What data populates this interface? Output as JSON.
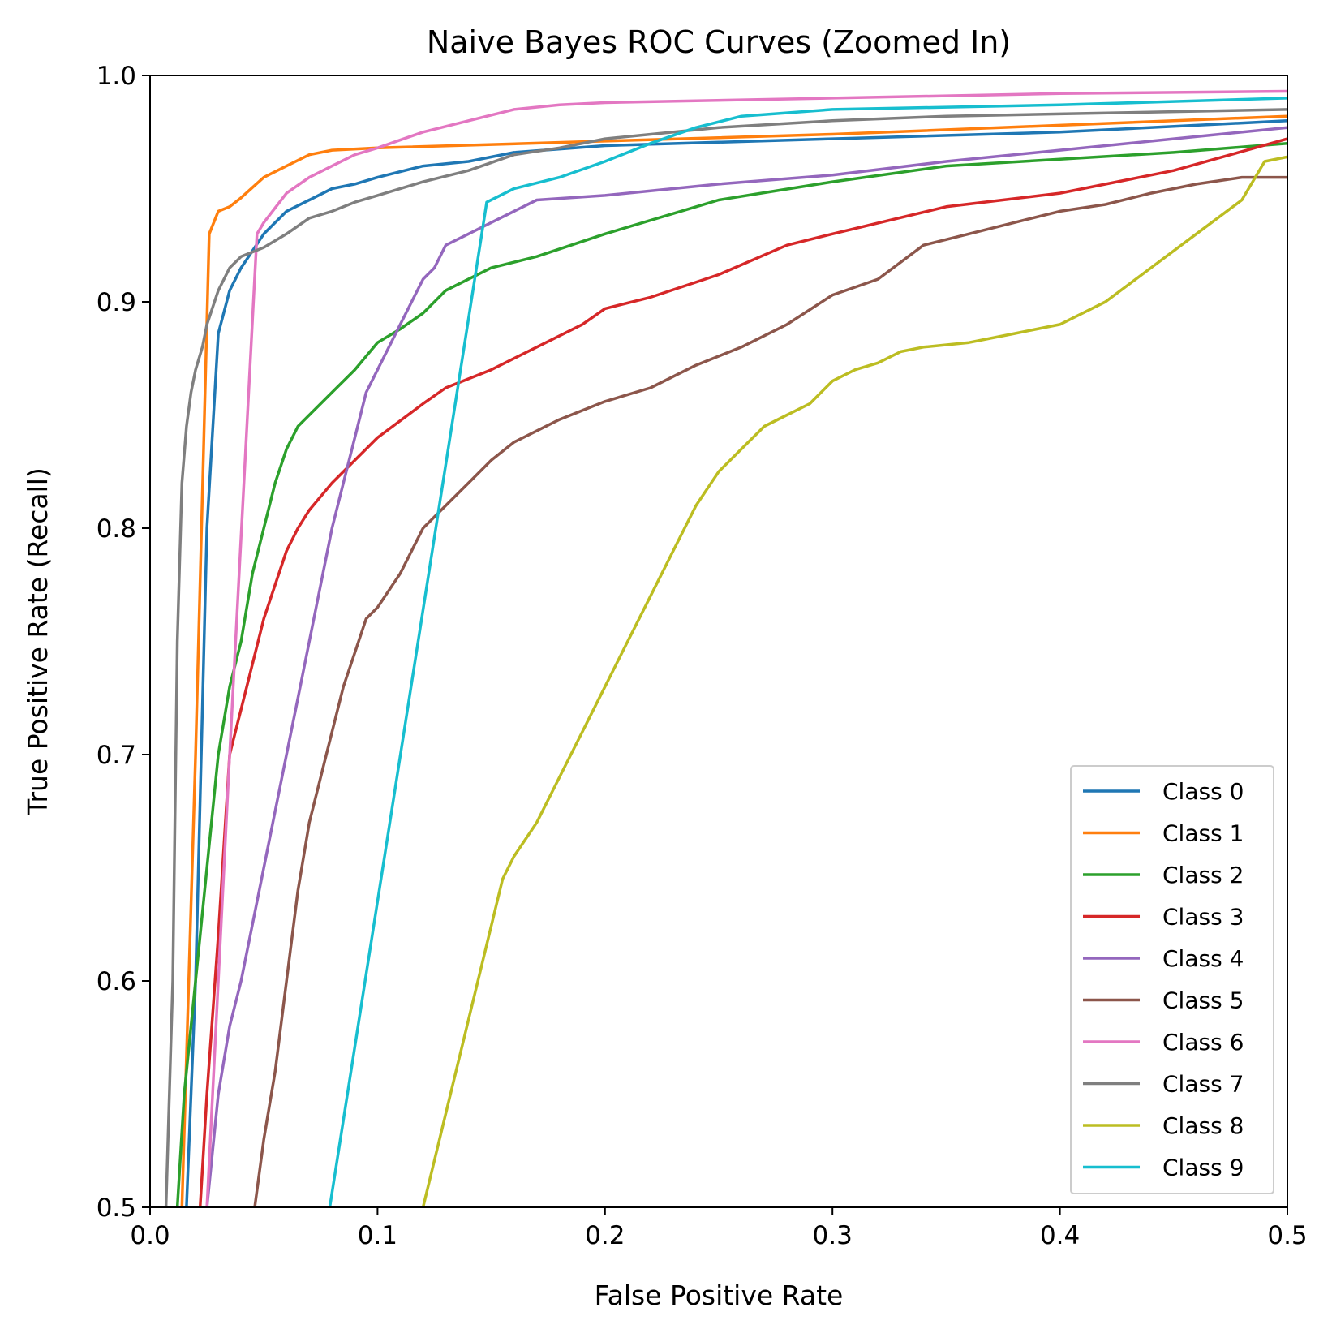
{
  "chart_data": {
    "type": "line",
    "title": "Naive Bayes ROC Curves (Zoomed In)",
    "xlabel": "False Positive Rate",
    "ylabel": "True Positive Rate (Recall)",
    "xlim": [
      0.0,
      0.5
    ],
    "ylim": [
      0.5,
      1.0
    ],
    "xticks": [
      "0.0",
      "0.1",
      "0.2",
      "0.3",
      "0.4",
      "0.5"
    ],
    "yticks": [
      "0.5",
      "0.6",
      "0.7",
      "0.8",
      "0.9",
      "1.0"
    ],
    "grid": false,
    "legend_position": "lower-right",
    "series": [
      {
        "name": "Class 0",
        "color": "#1f77b4",
        "points": [
          [
            0.016,
            0.5
          ],
          [
            0.02,
            0.6
          ],
          [
            0.025,
            0.8
          ],
          [
            0.03,
            0.886
          ],
          [
            0.035,
            0.905
          ],
          [
            0.04,
            0.915
          ],
          [
            0.05,
            0.93
          ],
          [
            0.06,
            0.94
          ],
          [
            0.07,
            0.945
          ],
          [
            0.08,
            0.95
          ],
          [
            0.09,
            0.952
          ],
          [
            0.1,
            0.955
          ],
          [
            0.12,
            0.96
          ],
          [
            0.14,
            0.962
          ],
          [
            0.16,
            0.966
          ],
          [
            0.2,
            0.969
          ],
          [
            0.3,
            0.972
          ],
          [
            0.4,
            0.975
          ],
          [
            0.5,
            0.98
          ]
        ]
      },
      {
        "name": "Class 1",
        "color": "#ff7f0e",
        "points": [
          [
            0.014,
            0.5
          ],
          [
            0.02,
            0.7
          ],
          [
            0.026,
            0.93
          ],
          [
            0.03,
            0.94
          ],
          [
            0.035,
            0.942
          ],
          [
            0.04,
            0.946
          ],
          [
            0.05,
            0.955
          ],
          [
            0.06,
            0.96
          ],
          [
            0.07,
            0.965
          ],
          [
            0.08,
            0.967
          ],
          [
            0.1,
            0.968
          ],
          [
            0.2,
            0.971
          ],
          [
            0.3,
            0.974
          ],
          [
            0.4,
            0.978
          ],
          [
            0.5,
            0.982
          ]
        ]
      },
      {
        "name": "Class 2",
        "color": "#2ca02c",
        "points": [
          [
            0.012,
            0.5
          ],
          [
            0.015,
            0.55
          ],
          [
            0.02,
            0.6
          ],
          [
            0.025,
            0.65
          ],
          [
            0.03,
            0.7
          ],
          [
            0.035,
            0.73
          ],
          [
            0.04,
            0.75
          ],
          [
            0.045,
            0.78
          ],
          [
            0.05,
            0.8
          ],
          [
            0.055,
            0.82
          ],
          [
            0.06,
            0.835
          ],
          [
            0.065,
            0.845
          ],
          [
            0.07,
            0.85
          ],
          [
            0.08,
            0.86
          ],
          [
            0.09,
            0.87
          ],
          [
            0.1,
            0.882
          ],
          [
            0.11,
            0.888
          ],
          [
            0.12,
            0.895
          ],
          [
            0.13,
            0.905
          ],
          [
            0.15,
            0.915
          ],
          [
            0.17,
            0.92
          ],
          [
            0.2,
            0.93
          ],
          [
            0.25,
            0.945
          ],
          [
            0.3,
            0.953
          ],
          [
            0.35,
            0.96
          ],
          [
            0.4,
            0.963
          ],
          [
            0.45,
            0.966
          ],
          [
            0.5,
            0.97
          ]
        ]
      },
      {
        "name": "Class 3",
        "color": "#d62728",
        "points": [
          [
            0.022,
            0.5
          ],
          [
            0.025,
            0.55
          ],
          [
            0.03,
            0.62
          ],
          [
            0.035,
            0.7
          ],
          [
            0.04,
            0.72
          ],
          [
            0.045,
            0.74
          ],
          [
            0.05,
            0.76
          ],
          [
            0.055,
            0.775
          ],
          [
            0.06,
            0.79
          ],
          [
            0.065,
            0.8
          ],
          [
            0.07,
            0.808
          ],
          [
            0.08,
            0.82
          ],
          [
            0.09,
            0.83
          ],
          [
            0.1,
            0.84
          ],
          [
            0.12,
            0.855
          ],
          [
            0.13,
            0.862
          ],
          [
            0.15,
            0.87
          ],
          [
            0.17,
            0.88
          ],
          [
            0.19,
            0.89
          ],
          [
            0.2,
            0.897
          ],
          [
            0.22,
            0.902
          ],
          [
            0.25,
            0.912
          ],
          [
            0.28,
            0.925
          ],
          [
            0.3,
            0.93
          ],
          [
            0.35,
            0.942
          ],
          [
            0.4,
            0.948
          ],
          [
            0.45,
            0.958
          ],
          [
            0.5,
            0.972
          ]
        ]
      },
      {
        "name": "Class 4",
        "color": "#9467bd",
        "points": [
          [
            0.025,
            0.5
          ],
          [
            0.03,
            0.55
          ],
          [
            0.035,
            0.58
          ],
          [
            0.04,
            0.6
          ],
          [
            0.045,
            0.625
          ],
          [
            0.05,
            0.65
          ],
          [
            0.055,
            0.675
          ],
          [
            0.06,
            0.7
          ],
          [
            0.065,
            0.725
          ],
          [
            0.07,
            0.75
          ],
          [
            0.075,
            0.775
          ],
          [
            0.08,
            0.8
          ],
          [
            0.085,
            0.82
          ],
          [
            0.09,
            0.84
          ],
          [
            0.095,
            0.86
          ],
          [
            0.1,
            0.87
          ],
          [
            0.105,
            0.88
          ],
          [
            0.11,
            0.89
          ],
          [
            0.12,
            0.91
          ],
          [
            0.125,
            0.915
          ],
          [
            0.13,
            0.925
          ],
          [
            0.14,
            0.93
          ],
          [
            0.15,
            0.935
          ],
          [
            0.17,
            0.945
          ],
          [
            0.2,
            0.947
          ],
          [
            0.25,
            0.952
          ],
          [
            0.3,
            0.956
          ],
          [
            0.35,
            0.962
          ],
          [
            0.4,
            0.967
          ],
          [
            0.45,
            0.972
          ],
          [
            0.5,
            0.977
          ]
        ]
      },
      {
        "name": "Class 5",
        "color": "#8c564b",
        "points": [
          [
            0.046,
            0.5
          ],
          [
            0.05,
            0.53
          ],
          [
            0.055,
            0.56
          ],
          [
            0.06,
            0.6
          ],
          [
            0.065,
            0.64
          ],
          [
            0.07,
            0.67
          ],
          [
            0.075,
            0.69
          ],
          [
            0.08,
            0.71
          ],
          [
            0.085,
            0.73
          ],
          [
            0.09,
            0.745
          ],
          [
            0.095,
            0.76
          ],
          [
            0.1,
            0.765
          ],
          [
            0.11,
            0.78
          ],
          [
            0.12,
            0.8
          ],
          [
            0.13,
            0.81
          ],
          [
            0.14,
            0.82
          ],
          [
            0.15,
            0.83
          ],
          [
            0.16,
            0.838
          ],
          [
            0.18,
            0.848
          ],
          [
            0.2,
            0.856
          ],
          [
            0.22,
            0.862
          ],
          [
            0.24,
            0.872
          ],
          [
            0.26,
            0.88
          ],
          [
            0.28,
            0.89
          ],
          [
            0.3,
            0.903
          ],
          [
            0.32,
            0.91
          ],
          [
            0.34,
            0.925
          ],
          [
            0.36,
            0.93
          ],
          [
            0.38,
            0.935
          ],
          [
            0.4,
            0.94
          ],
          [
            0.42,
            0.943
          ],
          [
            0.44,
            0.948
          ],
          [
            0.46,
            0.952
          ],
          [
            0.48,
            0.955
          ],
          [
            0.5,
            0.955
          ]
        ]
      },
      {
        "name": "Class 6",
        "color": "#e377c2",
        "points": [
          [
            0.025,
            0.5
          ],
          [
            0.035,
            0.7
          ],
          [
            0.047,
            0.93
          ],
          [
            0.05,
            0.935
          ],
          [
            0.06,
            0.948
          ],
          [
            0.07,
            0.955
          ],
          [
            0.08,
            0.96
          ],
          [
            0.09,
            0.965
          ],
          [
            0.1,
            0.968
          ],
          [
            0.12,
            0.975
          ],
          [
            0.14,
            0.98
          ],
          [
            0.16,
            0.985
          ],
          [
            0.18,
            0.987
          ],
          [
            0.2,
            0.988
          ],
          [
            0.3,
            0.99
          ],
          [
            0.4,
            0.992
          ],
          [
            0.5,
            0.993
          ]
        ]
      },
      {
        "name": "Class 7",
        "color": "#7f7f7f",
        "points": [
          [
            0.007,
            0.5
          ],
          [
            0.01,
            0.6
          ],
          [
            0.012,
            0.75
          ],
          [
            0.014,
            0.82
          ],
          [
            0.016,
            0.845
          ],
          [
            0.018,
            0.86
          ],
          [
            0.02,
            0.87
          ],
          [
            0.023,
            0.88
          ],
          [
            0.025,
            0.89
          ],
          [
            0.03,
            0.905
          ],
          [
            0.035,
            0.915
          ],
          [
            0.04,
            0.92
          ],
          [
            0.05,
            0.924
          ],
          [
            0.06,
            0.93
          ],
          [
            0.07,
            0.937
          ],
          [
            0.08,
            0.94
          ],
          [
            0.09,
            0.944
          ],
          [
            0.1,
            0.947
          ],
          [
            0.12,
            0.953
          ],
          [
            0.14,
            0.958
          ],
          [
            0.16,
            0.965
          ],
          [
            0.18,
            0.968
          ],
          [
            0.2,
            0.972
          ],
          [
            0.25,
            0.977
          ],
          [
            0.3,
            0.98
          ],
          [
            0.35,
            0.982
          ],
          [
            0.4,
            0.983
          ],
          [
            0.45,
            0.984
          ],
          [
            0.5,
            0.985
          ]
        ]
      },
      {
        "name": "Class 8",
        "color": "#bcbd22",
        "points": [
          [
            0.12,
            0.5
          ],
          [
            0.155,
            0.645
          ],
          [
            0.16,
            0.655
          ],
          [
            0.17,
            0.67
          ],
          [
            0.18,
            0.69
          ],
          [
            0.19,
            0.71
          ],
          [
            0.2,
            0.73
          ],
          [
            0.21,
            0.75
          ],
          [
            0.22,
            0.77
          ],
          [
            0.23,
            0.79
          ],
          [
            0.24,
            0.81
          ],
          [
            0.25,
            0.825
          ],
          [
            0.26,
            0.835
          ],
          [
            0.27,
            0.845
          ],
          [
            0.28,
            0.85
          ],
          [
            0.29,
            0.855
          ],
          [
            0.3,
            0.865
          ],
          [
            0.31,
            0.87
          ],
          [
            0.32,
            0.873
          ],
          [
            0.33,
            0.878
          ],
          [
            0.34,
            0.88
          ],
          [
            0.36,
            0.882
          ],
          [
            0.38,
            0.886
          ],
          [
            0.4,
            0.89
          ],
          [
            0.42,
            0.9
          ],
          [
            0.44,
            0.915
          ],
          [
            0.46,
            0.93
          ],
          [
            0.48,
            0.945
          ],
          [
            0.49,
            0.962
          ],
          [
            0.5,
            0.964
          ]
        ]
      },
      {
        "name": "Class 9",
        "color": "#17becf",
        "points": [
          [
            0.079,
            0.5
          ],
          [
            0.148,
            0.944
          ],
          [
            0.16,
            0.95
          ],
          [
            0.18,
            0.955
          ],
          [
            0.2,
            0.962
          ],
          [
            0.22,
            0.97
          ],
          [
            0.24,
            0.977
          ],
          [
            0.26,
            0.982
          ],
          [
            0.3,
            0.985
          ],
          [
            0.4,
            0.987
          ],
          [
            0.5,
            0.99
          ]
        ]
      }
    ]
  }
}
